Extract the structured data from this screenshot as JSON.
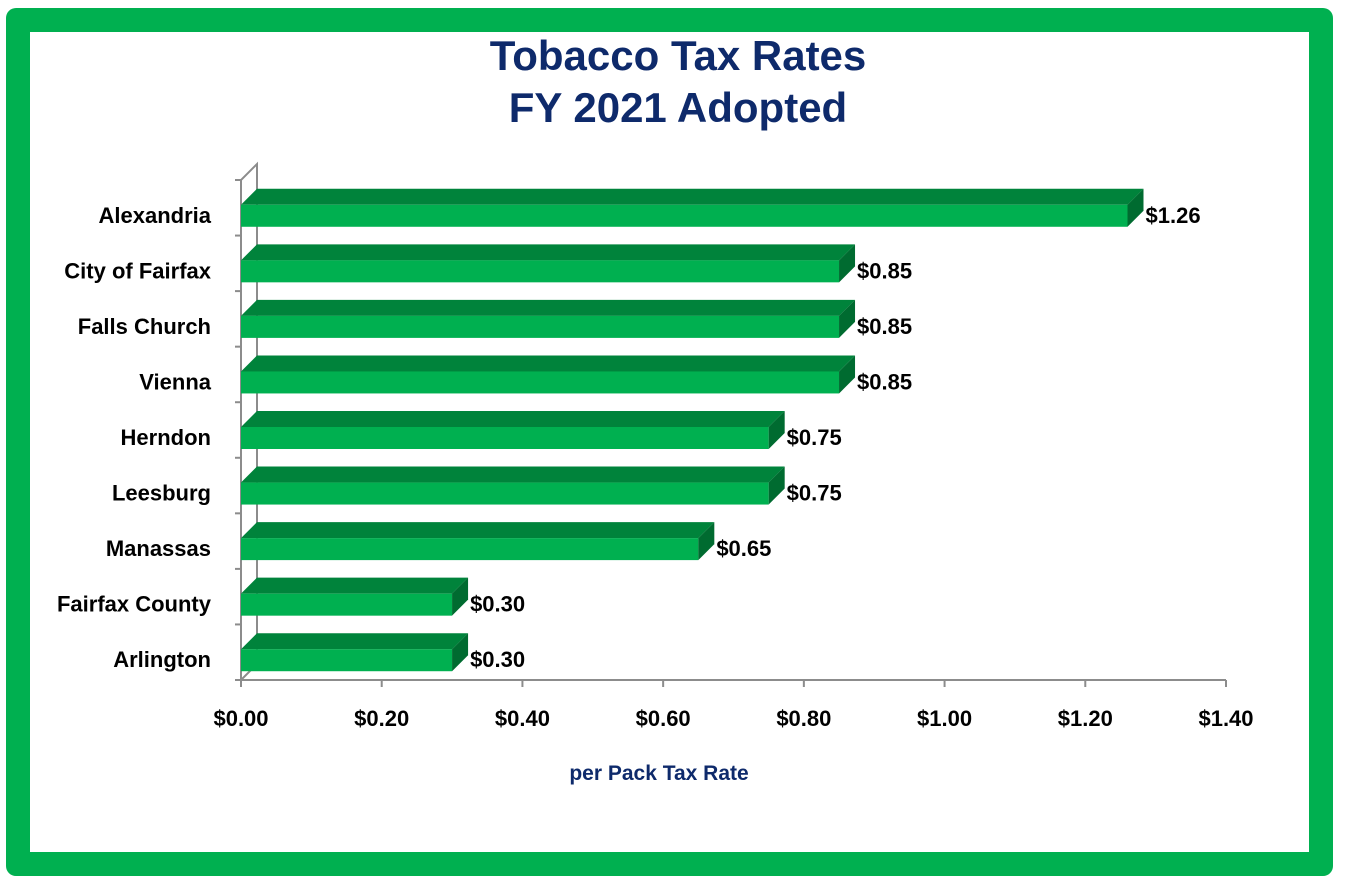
{
  "chart_data": {
    "type": "bar",
    "orientation": "horizontal",
    "title_line1": "Tobacco Tax Rates",
    "title_line2": "FY 2021 Adopted",
    "xlabel": "per Pack Tax Rate",
    "ylabel": "",
    "categories": [
      "Alexandria",
      "City of Fairfax",
      "Falls Church",
      "Vienna",
      "Herndon",
      "Leesburg",
      "Manassas",
      "Fairfax County",
      "Arlington"
    ],
    "values": [
      1.26,
      0.85,
      0.85,
      0.85,
      0.75,
      0.75,
      0.65,
      0.3,
      0.3
    ],
    "value_labels": [
      "$1.26",
      "$0.85",
      "$0.85",
      "$0.85",
      "$0.75",
      "$0.75",
      "$0.65",
      "$0.30",
      "$0.30"
    ],
    "xlim": [
      0,
      1.4
    ],
    "x_ticks": [
      0,
      0.2,
      0.4,
      0.6,
      0.8,
      1.0,
      1.2,
      1.4
    ],
    "x_tick_labels": [
      "$0.00",
      "$0.20",
      "$0.40",
      "$0.60",
      "$0.80",
      "$1.00",
      "$1.20",
      "$1.40"
    ],
    "grid": false,
    "bar_style": "3d",
    "colors": {
      "bar_front": "#00b050",
      "bar_top": "#00833b",
      "bar_side": "#006b30",
      "frame_border": "#00b050",
      "title": "#0e2a6b",
      "axis": "#8c8c8c"
    }
  }
}
